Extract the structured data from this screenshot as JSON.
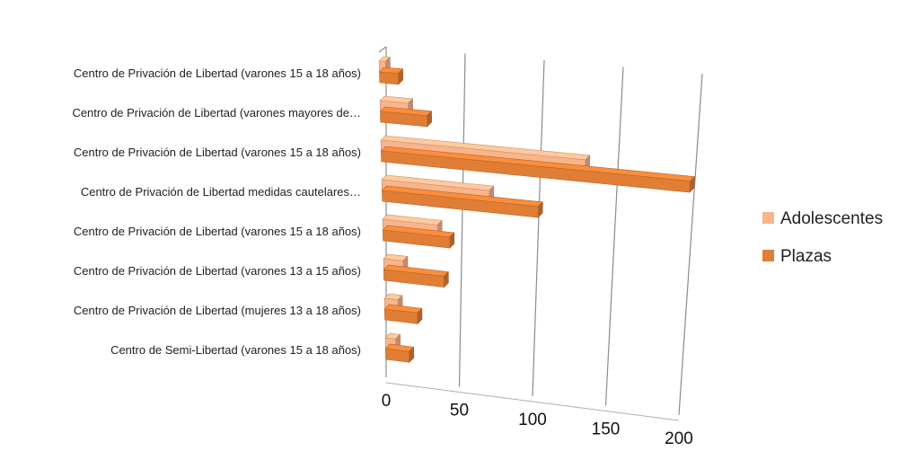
{
  "chart_data": {
    "type": "bar",
    "orientation": "horizontal",
    "style": "3d",
    "categories": [
      "Centro de Privación de Libertad (varones 15 a 18 años)",
      "Centro de Privación de Libertad (varones mayores de…",
      "Centro de Privación de Libertad (varones 15 a 18 años)",
      "Centro de Privación de Libertad medidas cautelares…",
      "Centro de Privación de Libertad (varones 15 a 18 años)",
      "Centro de Privación de Libertad (varones 13 a 15 años)",
      "Centro de Privación de Libertad (mujeres 13 a 18 años)",
      "Centro de Semi-Libertad (varones 15 a 18 años)"
    ],
    "series": [
      {
        "name": "Adolescentes",
        "color": "#F9B48C",
        "values": [
          4,
          18,
          132,
          70,
          36,
          13,
          9,
          7
        ]
      },
      {
        "name": "Plazas",
        "color": "#E07E36",
        "values": [
          12,
          30,
          200,
          102,
          44,
          40,
          22,
          16
        ]
      }
    ],
    "xlim": [
      0,
      200
    ],
    "xticks": [
      "0",
      "50",
      "100",
      "150",
      "200"
    ],
    "grid": true,
    "legend_position": "right"
  }
}
